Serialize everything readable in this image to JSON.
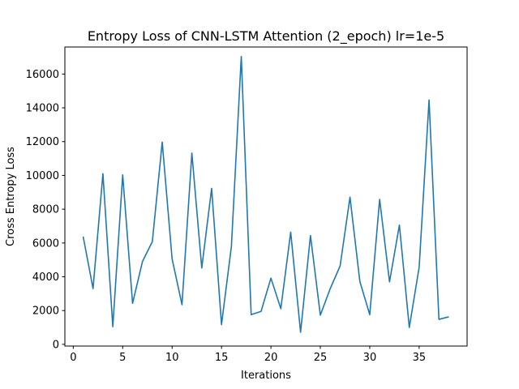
{
  "chart_data": {
    "type": "line",
    "title": "Entropy Loss of CNN-LSTM Attention (2_epoch) lr=1e-5",
    "xlabel": "Iterations",
    "ylabel": "Cross Entropy Loss",
    "xlim": [
      -0.85,
      39.85
    ],
    "ylim": [
      -100,
      17600
    ],
    "xticks": [
      0,
      5,
      10,
      15,
      20,
      25,
      30,
      35
    ],
    "yticks": [
      0,
      2000,
      4000,
      6000,
      8000,
      10000,
      12000,
      14000,
      16000
    ],
    "grid": false,
    "legend": "none",
    "series": [
      {
        "color": "#1f77b4",
        "x": [
          1,
          2,
          3,
          4,
          5,
          6,
          7,
          8,
          9,
          10,
          11,
          12,
          13,
          14,
          15,
          16,
          17,
          18,
          19,
          20,
          21,
          22,
          23,
          24,
          25,
          26,
          27,
          28,
          29,
          30,
          31,
          32,
          33,
          34,
          35,
          36,
          37,
          38
        ],
        "values": [
          6380,
          3300,
          10100,
          1050,
          10030,
          2430,
          4900,
          6080,
          11970,
          5060,
          2350,
          11320,
          4520,
          9230,
          1170,
          5800,
          17040,
          1760,
          1950,
          3920,
          2110,
          6640,
          720,
          6440,
          1730,
          3300,
          4640,
          8710,
          3720,
          1760,
          8580,
          3700,
          7060,
          1000,
          4570,
          14460,
          1480,
          1630
        ]
      }
    ]
  }
}
